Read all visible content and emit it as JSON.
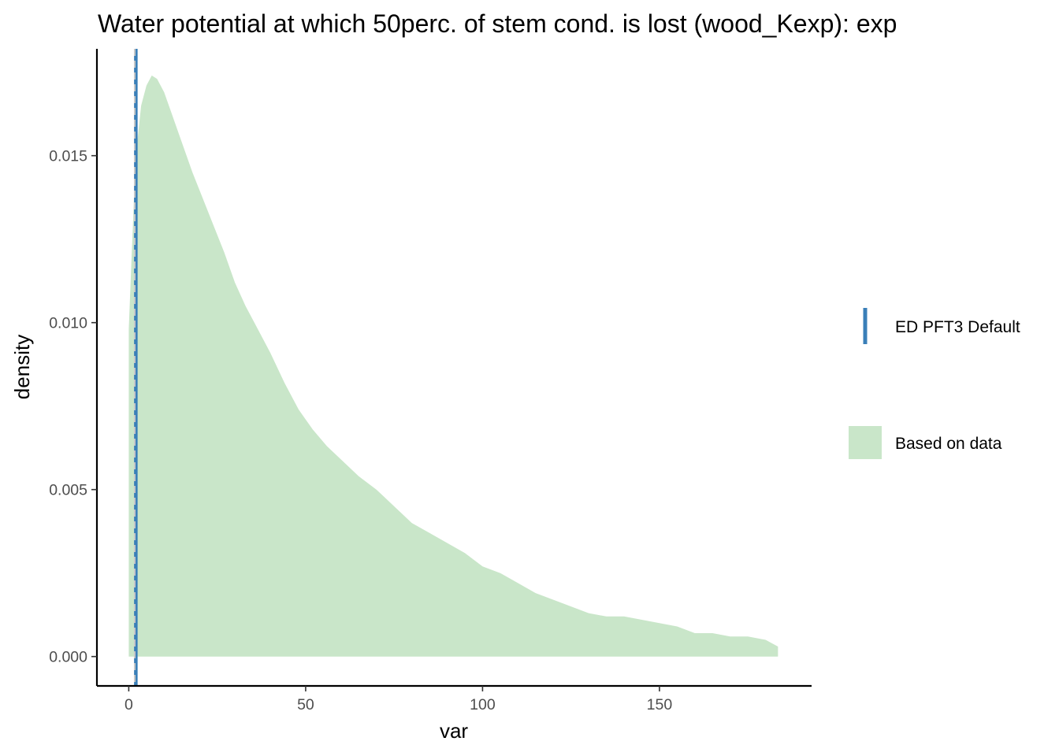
{
  "chart_data": {
    "type": "area",
    "title": "Water potential at which 50perc. of stem cond. is lost (wood_Kexp): exp",
    "xlabel": "var",
    "ylabel": "density",
    "xlim": [
      -9,
      193
    ],
    "ylim": [
      -0.00088,
      0.0182
    ],
    "x_ticks": [
      0,
      50,
      100,
      150
    ],
    "y_ticks": [
      0.0,
      0.005,
      0.01,
      0.015
    ],
    "x_tick_labels": [
      "0",
      "50",
      "100",
      "150"
    ],
    "y_tick_labels": [
      "0.000",
      "0.005",
      "0.010",
      "0.015"
    ],
    "grid": false,
    "legend_position": "right",
    "series": [
      {
        "name": "Based on data",
        "kind": "density-area",
        "color": "#c9e6c9",
        "x": [
          0,
          0.7,
          1.5,
          2.5,
          3.5,
          5,
          6.5,
          8,
          10,
          12,
          15,
          18,
          21,
          24,
          27,
          30,
          33,
          36,
          40,
          44,
          48,
          52,
          56,
          60,
          65,
          70,
          72,
          76,
          80,
          85,
          90,
          95,
          100,
          105,
          110,
          115,
          120,
          125,
          130,
          135,
          140,
          145,
          150,
          155,
          160,
          165,
          170,
          175,
          180,
          183.5
        ],
        "y": [
          0.0098,
          0.0117,
          0.0138,
          0.0155,
          0.0165,
          0.0171,
          0.0174,
          0.0173,
          0.0169,
          0.0163,
          0.0154,
          0.0145,
          0.0137,
          0.0129,
          0.0121,
          0.0112,
          0.0105,
          0.0099,
          0.0091,
          0.0082,
          0.0074,
          0.0068,
          0.0063,
          0.0059,
          0.0054,
          0.005,
          0.0048,
          0.0044,
          0.004,
          0.0037,
          0.0034,
          0.0031,
          0.0027,
          0.0025,
          0.0022,
          0.0019,
          0.0017,
          0.0015,
          0.0013,
          0.0012,
          0.0012,
          0.0011,
          0.001,
          0.0009,
          0.0007,
          0.0007,
          0.0006,
          0.0006,
          0.0005,
          0.0003
        ]
      },
      {
        "name": "ED PFT3 Default",
        "kind": "vline",
        "color": "#3a7fb8",
        "x": 2
      }
    ],
    "reference_line": {
      "kind": "dashed-vline",
      "x": 1.7,
      "color": "#c8c8c8"
    },
    "legend": [
      {
        "label": "ED PFT3 Default",
        "symbol": "vline",
        "color": "#3a7fb8"
      },
      {
        "label": "Based on data",
        "symbol": "fill",
        "color": "#c9e6c9"
      }
    ]
  }
}
